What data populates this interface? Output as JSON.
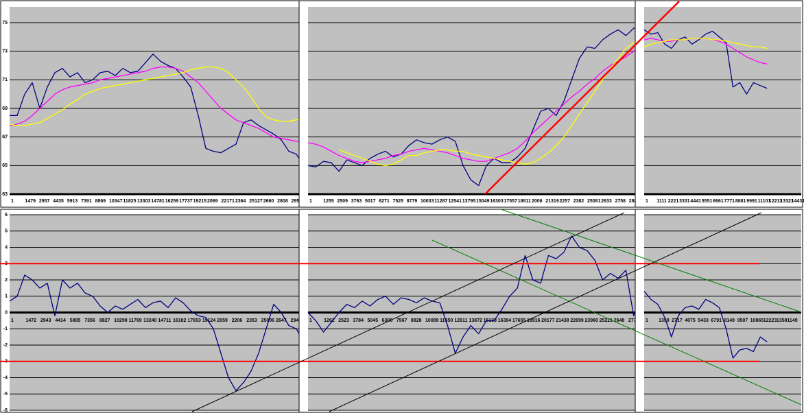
{
  "chart_data": [
    {
      "type": "line",
      "ylim": [
        63,
        75
      ],
      "yticks": [
        63,
        65,
        67,
        69,
        71,
        73,
        75
      ],
      "show_ytick_labels": true,
      "xtick_labels": [
        "1",
        "1479",
        "2957",
        "4435",
        "5913",
        "7391",
        "8869",
        "10347",
        "11825",
        "13303",
        "14781",
        "16259",
        "17737",
        "19215",
        "2069",
        "22171",
        "2364",
        "25127",
        "2660",
        "2808",
        "29561"
      ],
      "series": [
        {
          "color": "#000080",
          "values": [
            68.5,
            68.5,
            70,
            70.8,
            69,
            70.5,
            71.5,
            71.8,
            71.2,
            71.5,
            70.8,
            71,
            71.5,
            71.6,
            71.3,
            71.8,
            71.5,
            71.6,
            72.2,
            72.8,
            72.3,
            72,
            71.8,
            71.2,
            70.5,
            68.5,
            66.2,
            66,
            65.9,
            66.2,
            66.5,
            68,
            68.2,
            67.8,
            67.5,
            67.2,
            66.8,
            66,
            65.8,
            65
          ]
        },
        {
          "color": "#ff00ff",
          "values": [
            67.8,
            67.9,
            68.1,
            68.5,
            69,
            69.5,
            70,
            70.3,
            70.5,
            70.6,
            70.7,
            70.8,
            71,
            71.1,
            71.2,
            71.3,
            71.4,
            71.5,
            71.6,
            71.8,
            71.9,
            71.9,
            71.8,
            71.6,
            71.2,
            70.8,
            70.2,
            69.6,
            69,
            68.6,
            68.2,
            68,
            67.8,
            67.6,
            67.3,
            67,
            66.9,
            66.8,
            66.7,
            66.7
          ]
        },
        {
          "color": "#ffff00",
          "values": [
            67.9,
            67.8,
            67.8,
            67.9,
            68,
            68.3,
            68.6,
            68.9,
            69.3,
            69.6,
            70,
            70.2,
            70.4,
            70.5,
            70.6,
            70.7,
            70.8,
            70.9,
            71,
            71.1,
            71.2,
            71.3,
            71.4,
            71.5,
            71.7,
            71.8,
            71.9,
            71.9,
            71.8,
            71.5,
            71,
            70.5,
            69.8,
            69,
            68.4,
            68.2,
            68.1,
            68.1,
            68.2,
            68.3
          ]
        }
      ]
    },
    {
      "type": "line",
      "ylim": [
        63,
        75
      ],
      "yticks": [
        63,
        65,
        67,
        69,
        71,
        73,
        75
      ],
      "show_ytick_labels": false,
      "xtick_labels": [
        "1",
        "1255",
        "2509",
        "3763",
        "5017",
        "6271",
        "7525",
        "8779",
        "10033",
        "11287",
        "12541",
        "13795",
        "15049",
        "16303",
        "17557",
        "18811",
        "2006",
        "21319",
        "2257",
        "2382",
        "25081",
        "2633",
        "2758",
        "288"
      ],
      "series": [
        {
          "color": "#000080",
          "values": [
            65,
            64.9,
            65.3,
            65.2,
            64.6,
            65.4,
            65.2,
            65,
            65.5,
            65.8,
            66,
            65.6,
            65.8,
            66.4,
            66.8,
            66.6,
            66.5,
            66.8,
            67,
            66.7,
            65,
            64,
            63.6,
            65,
            65.5,
            65.2,
            65.2,
            65.6,
            66.2,
            67.5,
            68.8,
            69,
            68.5,
            69.5,
            71,
            72.5,
            73.3,
            73.2,
            73.8,
            74.2,
            74.5,
            74.1,
            74.6,
            74.8
          ]
        },
        {
          "color": "#ff00ff",
          "values": [
            66.6,
            66.5,
            66.3,
            66,
            65.7,
            65.5,
            65.3,
            65.2,
            65.3,
            65.4,
            65.5,
            65.7,
            65.8,
            66,
            66.1,
            66.2,
            66.1,
            66,
            65.9,
            65.7,
            65.5,
            65.4,
            65.3,
            65.3,
            65.5,
            65.7,
            65.9,
            66.2,
            66.7,
            67.3,
            67.8,
            68.3,
            68.8,
            69.3,
            69.8,
            70.2,
            70.7,
            71.1,
            71.6,
            72,
            72.3,
            72.6,
            73,
            73.5
          ]
        },
        {
          "color": "#ffff00",
          "values": [
            null,
            null,
            null,
            null,
            66.1,
            65.9,
            65.7,
            65.5,
            65.3,
            65.1,
            65,
            65.1,
            65.4,
            65.7,
            65.7,
            65.9,
            66,
            66.1,
            66.1,
            66,
            66,
            65.8,
            65.7,
            65.6,
            65.5,
            65.4,
            65.3,
            65.2,
            65.1,
            65.2,
            65.5,
            65.9,
            66.4,
            67,
            67.8,
            68.6,
            69.4,
            70.2,
            71,
            71.8,
            72.5,
            73.2,
            73.6,
            74
          ]
        }
      ]
    },
    {
      "type": "line",
      "ylim": [
        63,
        75
      ],
      "yticks": [
        63,
        65,
        67,
        69,
        71,
        73,
        75
      ],
      "show_ytick_labels": false,
      "xtick_labels": [
        "1",
        "1111",
        "2221",
        "3331",
        "4441",
        "5551",
        "6661",
        "7771",
        "8881",
        "9991",
        "11101",
        "12211",
        "13321",
        "14431"
      ],
      "series": [
        {
          "color": "#000080",
          "values": [
            74.5,
            74.2,
            74.3,
            73.5,
            73.2,
            73.8,
            74,
            73.5,
            73.8,
            74.2,
            74.4,
            74,
            73.6,
            70.5,
            70.8,
            70,
            70.8,
            70.6,
            70.4,
            null,
            null,
            null,
            null,
            null
          ]
        },
        {
          "color": "#ff00ff",
          "values": [
            73.8,
            73.9,
            73.8,
            73.7,
            73.7,
            73.8,
            73.8,
            73.9,
            73.9,
            73.9,
            73.8,
            73.7,
            73.5,
            73.2,
            72.9,
            72.6,
            72.4,
            72.2,
            72.1,
            null,
            null,
            null,
            null,
            null
          ]
        },
        {
          "color": "#ffff00",
          "values": [
            73.3,
            73.5,
            73.6,
            73.7,
            73.8,
            73.8,
            73.8,
            73.9,
            73.9,
            73.9,
            73.8,
            73.8,
            73.7,
            73.6,
            73.5,
            73.4,
            73.3,
            73.3,
            73.2,
            null,
            null,
            null,
            null,
            null
          ]
        }
      ]
    },
    {
      "type": "line",
      "ylim": [
        -6,
        6
      ],
      "yticks": [
        -6,
        -5,
        -4,
        -3,
        -2,
        -1,
        0,
        1,
        2,
        3,
        4,
        5,
        6
      ],
      "show_ytick_labels": true,
      "hlines": [
        3,
        -3
      ],
      "xtick_labels": [
        "1",
        "1472",
        "2943",
        "4414",
        "5885",
        "7356",
        "8827",
        "10298",
        "11769",
        "13240",
        "14711",
        "16182",
        "17653",
        "19124",
        "2059",
        "2206",
        "2353",
        "25006",
        "2647",
        "29421"
      ],
      "series": [
        {
          "color": "#000080",
          "values": [
            0.7,
            1,
            2.3,
            2,
            1.5,
            1.8,
            -0.2,
            2,
            1.5,
            1.8,
            1.2,
            1,
            0.4,
            0,
            0.4,
            0.2,
            0.5,
            0.8,
            0.3,
            0.6,
            0.7,
            0.3,
            0.9,
            0.6,
            0.1,
            -0.2,
            -0.3,
            -1,
            -2.5,
            -4,
            -4.8,
            -4.3,
            -3.6,
            -2.5,
            -1,
            0.5,
            0,
            -0.8,
            -1,
            -1.8
          ]
        }
      ]
    },
    {
      "type": "line",
      "ylim": [
        -6,
        6
      ],
      "yticks": [
        -6,
        -5,
        -4,
        -3,
        -2,
        -1,
        0,
        1,
        2,
        3,
        4,
        5,
        6
      ],
      "show_ytick_labels": false,
      "xtick_labels": [
        "1",
        "1262",
        "2523",
        "3784",
        "5045",
        "6306",
        "7567",
        "8828",
        "10089",
        "11350",
        "12611",
        "13872",
        "15133",
        "16394",
        "17655",
        "18916",
        "20177",
        "21438",
        "22699",
        "23960",
        "25221",
        "2648",
        "2774"
      ],
      "series": [
        {
          "color": "#000080",
          "values": [
            0,
            -0.5,
            -1.2,
            -0.6,
            0,
            0.5,
            0.3,
            0.7,
            0.4,
            0.8,
            1,
            0.5,
            0.9,
            0.8,
            0.6,
            0.9,
            0.7,
            0.6,
            -0.8,
            -2.5,
            -1.5,
            -0.8,
            -1.3,
            -0.5,
            -0.5,
            0.2,
            1,
            1.5,
            3.5,
            2,
            1.8,
            3.5,
            3.3,
            3.7,
            4.7,
            4,
            3.8,
            3.2,
            2,
            2.4,
            2.1,
            2.6,
            -0.2,
            1
          ]
        }
      ]
    },
    {
      "type": "line",
      "ylim": [
        -6,
        6
      ],
      "yticks": [
        -6,
        -5,
        -4,
        -3,
        -2,
        -1,
        0,
        1,
        2,
        3,
        4,
        5,
        6
      ],
      "show_ytick_labels": false,
      "xtick_labels": [
        "1",
        "1359",
        "2717",
        "4075",
        "5433",
        "6791",
        "8149",
        "9507",
        "10865",
        "12223",
        "13581",
        "149"
      ],
      "series": [
        {
          "color": "#000080",
          "values": [
            1.3,
            0.8,
            0.5,
            -0.3,
            -1.5,
            -0.2,
            0.3,
            0.4,
            0.2,
            0.8,
            0.6,
            0.3,
            -1,
            -2.8,
            -2.3,
            -2.2,
            -2.4,
            -1.5,
            -1.8,
            null,
            null,
            null,
            null,
            null
          ]
        }
      ]
    }
  ]
}
